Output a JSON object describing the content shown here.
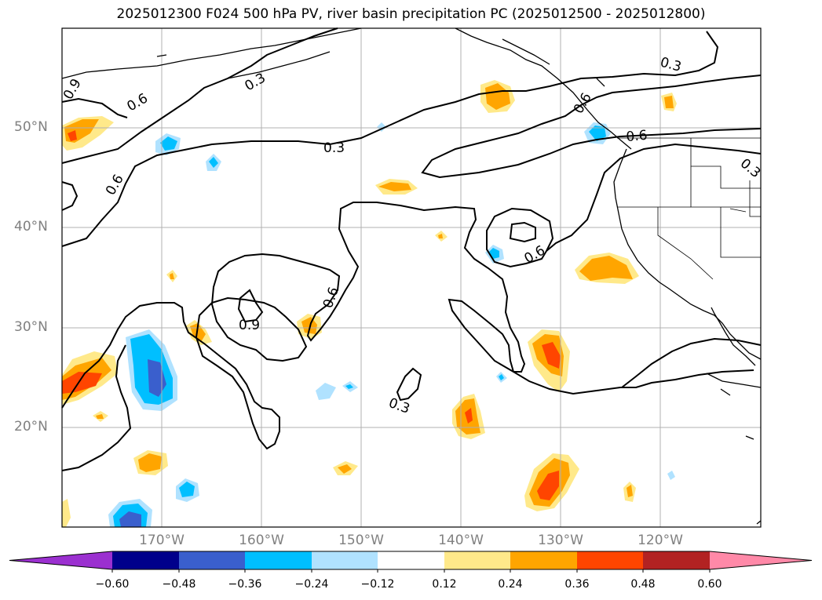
{
  "title": "2025012300 F024 500 hPa PV, river basin precipitation PC (2025012500 - 2025012800)",
  "lat_ticks": [
    "50°N",
    "40°N",
    "30°N",
    "20°N"
  ],
  "lon_ticks": [
    "170°W",
    "160°W",
    "150°W",
    "140°W",
    "130°W",
    "120°W"
  ],
  "contour_labels": [
    "0.9",
    "0.6",
    "0.6",
    "0.3",
    "0.3",
    "0.6",
    "0.6",
    "0.9",
    "0.6",
    "0.3",
    "0.3",
    "0.6",
    "0.3"
  ],
  "colorbar": {
    "tick_labels": [
      "−0.60",
      "−0.48",
      "−0.36",
      "−0.24",
      "−0.12",
      "0.12",
      "0.24",
      "0.36",
      "0.48",
      "0.60"
    ],
    "colors": [
      "#9b30d0",
      "#00008b",
      "#3a5fcd",
      "#00bfff",
      "#b0e2ff",
      "#ffffff",
      "#ffe98a",
      "#ffa500",
      "#ff4500",
      "#b22222",
      "#ff89a8"
    ],
    "extend": "both"
  }
}
